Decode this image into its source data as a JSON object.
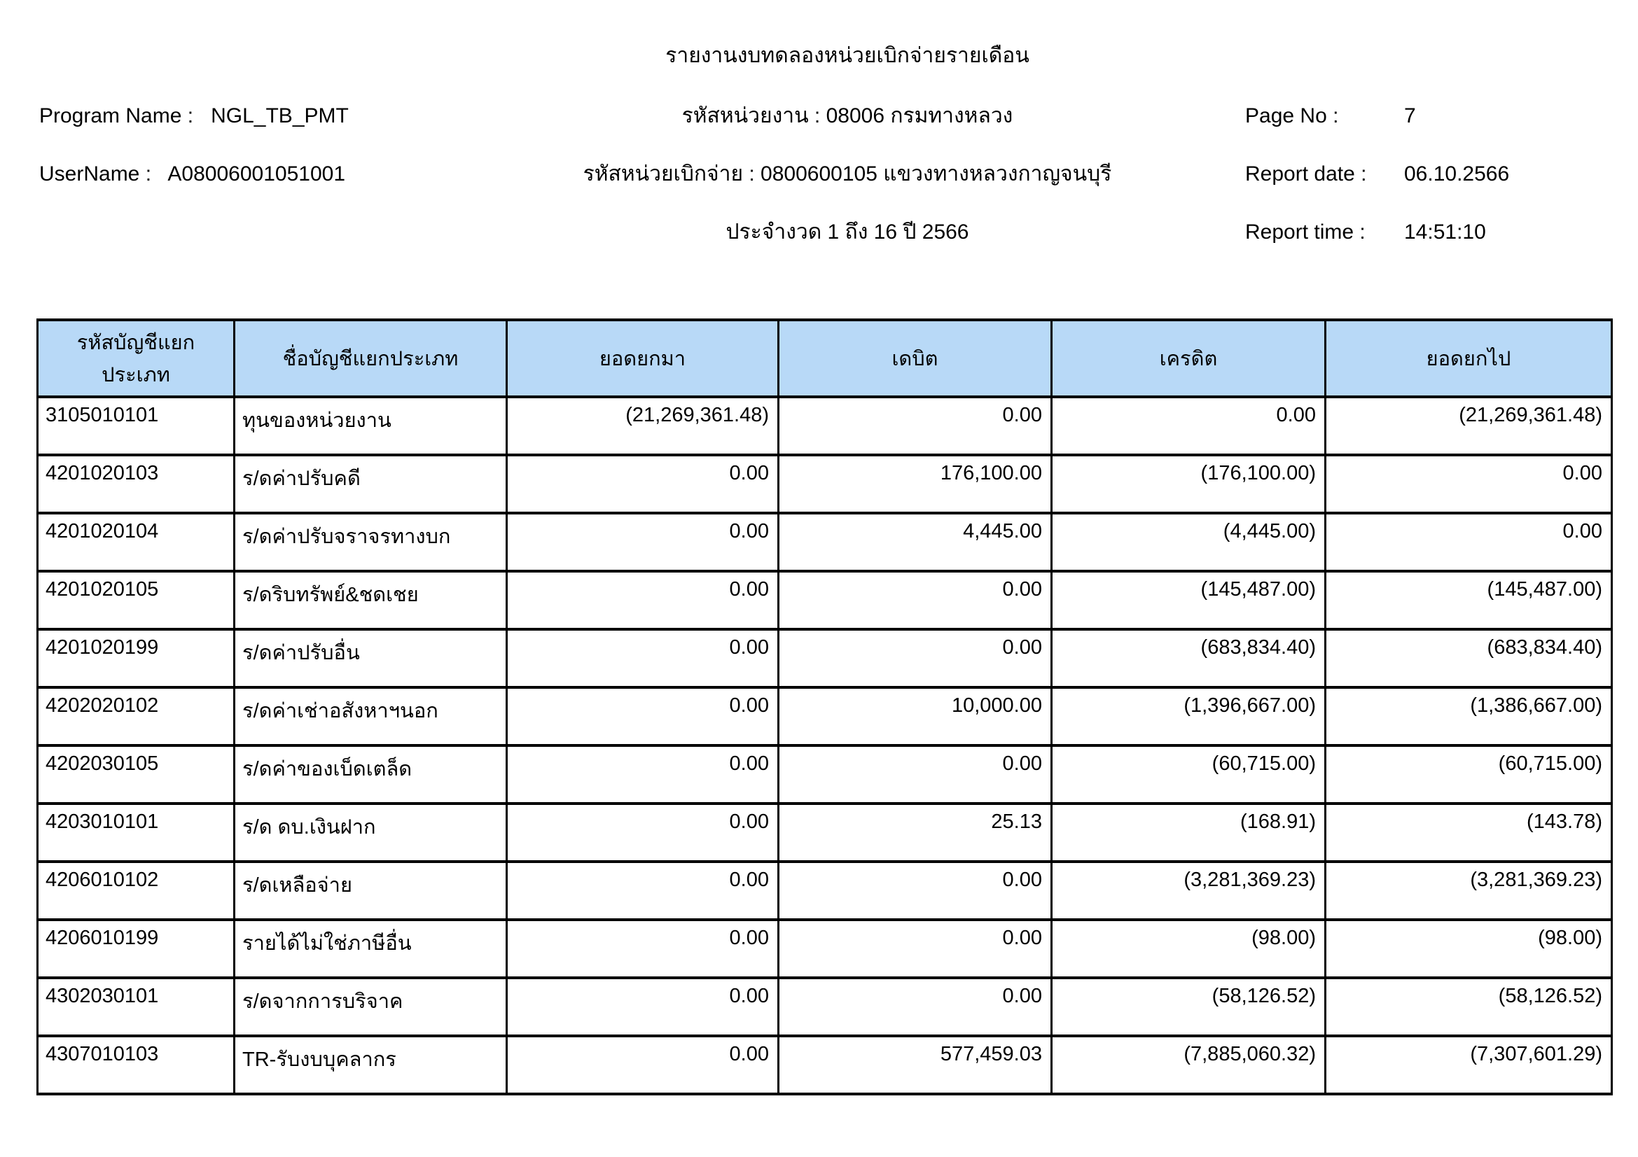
{
  "report": {
    "title": "รายงานงบทดลองหน่วยเบิกจ่ายรายเดือน",
    "program_name_label": "Program Name :",
    "program_name": "NGL_TB_PMT",
    "username_label": "UserName :",
    "username": "A08006001051001",
    "agency_line": "รหัสหน่วยงาน : 08006 กรมทางหลวง",
    "disburse_unit_line": "รหัสหน่วยเบิกจ่าย : 0800600105 แขวงทางหลวงกาญจนบุรี",
    "period_line": "ประจำงวด 1 ถึง 16 ปี 2566",
    "page_no_label": "Page No :",
    "page_no": "7",
    "report_date_label": "Report date :",
    "report_date": "06.10.2566",
    "report_time_label": "Report time :",
    "report_time": "14:51:10"
  },
  "table": {
    "header_bg": "#b8d9f7",
    "headers": [
      "รหัสบัญชีแยกประเภท",
      "ชื่อบัญชีแยกประเภท",
      "ยอดยกมา",
      "เดบิต",
      "เครดิต",
      "ยอดยกไป"
    ],
    "rows": [
      [
        "3105010101",
        "ทุนของหน่วยงาน",
        "(21,269,361.48)",
        "0.00",
        "0.00",
        "(21,269,361.48)"
      ],
      [
        "4201020103",
        "ร/ดค่าปรับคดี",
        "0.00",
        "176,100.00",
        "(176,100.00)",
        "0.00"
      ],
      [
        "4201020104",
        "ร/ดค่าปรับจราจรทางบก",
        "0.00",
        "4,445.00",
        "(4,445.00)",
        "0.00"
      ],
      [
        "4201020105",
        "ร/ดริบทรัพย์&ชดเชย",
        "0.00",
        "0.00",
        "(145,487.00)",
        "(145,487.00)"
      ],
      [
        "4201020199",
        "ร/ดค่าปรับอื่น",
        "0.00",
        "0.00",
        "(683,834.40)",
        "(683,834.40)"
      ],
      [
        "4202020102",
        "ร/ดค่าเช่าอสังหาฯนอก",
        "0.00",
        "10,000.00",
        "(1,396,667.00)",
        "(1,386,667.00)"
      ],
      [
        "4202030105",
        "ร/ดค่าของเบ็ดเตล็ด",
        "0.00",
        "0.00",
        "(60,715.00)",
        "(60,715.00)"
      ],
      [
        "4203010101",
        "ร/ด ดบ.เงินฝาก",
        "0.00",
        "25.13",
        "(168.91)",
        "(143.78)"
      ],
      [
        "4206010102",
        "ร/ดเหลือจ่าย",
        "0.00",
        "0.00",
        "(3,281,369.23)",
        "(3,281,369.23)"
      ],
      [
        "4206010199",
        "รายได้ไม่ใช่ภาษีอื่น",
        "0.00",
        "0.00",
        "(98.00)",
        "(98.00)"
      ],
      [
        "4302030101",
        "ร/ดจากการบริจาค",
        "0.00",
        "0.00",
        "(58,126.52)",
        "(58,126.52)"
      ],
      [
        "4307010103",
        "TR-รับงบบุคลากร",
        "0.00",
        "577,459.03",
        "(7,885,060.32)",
        "(7,307,601.29)"
      ]
    ]
  }
}
